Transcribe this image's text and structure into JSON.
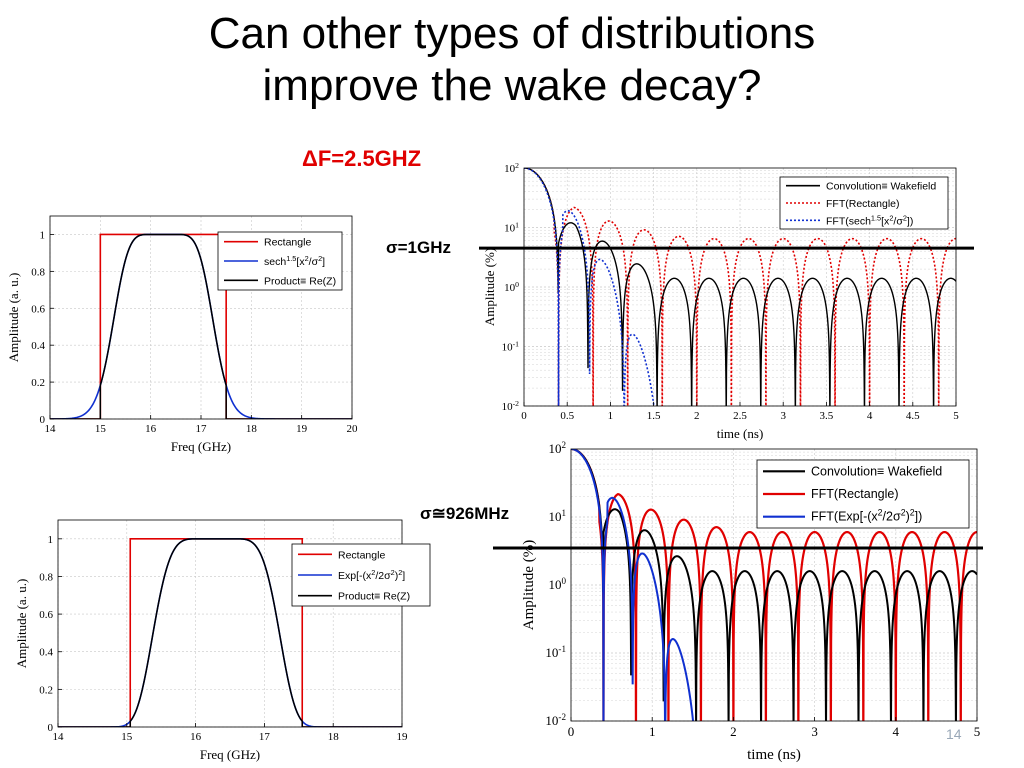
{
  "slide": {
    "title_line1": "Can other types of distributions",
    "title_line2": "improve the wake decay?",
    "delta_f_label": "F=2.5GHZ",
    "delta_symbol": "Δ",
    "sigma1_label": "σ=1GHz",
    "sigma2_label": "σ≅926MHz",
    "page_number": "14"
  },
  "colors": {
    "red": "#e00000",
    "blue": "#1030d0",
    "black": "#000000"
  },
  "chart_data": [
    {
      "id": "freq1",
      "type": "line",
      "xlabel": "Freq (GHz)",
      "ylabel": "Amplitude (a. u.)",
      "xlim": [
        14,
        20
      ],
      "ylim": [
        0,
        1.1
      ],
      "xticks": [
        "14",
        "15",
        "16",
        "17",
        "18",
        "19",
        "20"
      ],
      "yticks": [
        "0",
        "0.2",
        "0.4",
        "0.6",
        "0.8",
        "1"
      ],
      "rect_range": [
        15,
        17.5
      ],
      "dist": {
        "type": "sech",
        "center": 16.25,
        "sigma": 1.0,
        "flat_halfwidth": 0.25,
        "power": 1.5
      },
      "series": [
        {
          "name": "Rectangle",
          "color": "#e00000",
          "style": "solid"
        },
        {
          "name": "sech",
          "sup1": "1.5",
          "mid": "[x",
          "sup2": "2",
          "end": "/σ",
          "sup3": "2",
          "close": "]",
          "color": "#1030d0",
          "style": "solid"
        },
        {
          "name": "Product≡ Re(Z)",
          "color": "#000000",
          "style": "solid"
        }
      ]
    },
    {
      "id": "wake1",
      "type": "line",
      "log_y": true,
      "xlabel": "time (ns)",
      "ylabel": "Amplitude (%)",
      "xlim": [
        0,
        5
      ],
      "ylim": [
        0.01,
        100
      ],
      "xticks": [
        "0",
        "0.5",
        "1",
        "1.5",
        "2",
        "2.5",
        "3",
        "3.5",
        "4",
        "4.5",
        "5"
      ],
      "ytick_base": "10",
      "ytick_exps": [
        "-2",
        "-1",
        "0",
        "1",
        "2"
      ],
      "threshold": 4.5,
      "series": [
        {
          "name": "Convolution≡ Wakefield",
          "color": "#000000",
          "style": "solid",
          "envelope": {
            "floor": 1.4,
            "peak": 12
          }
        },
        {
          "name": "FFT(Rectangle)",
          "color": "#e00000",
          "style": "dotted",
          "envelope": {
            "floor": 6.5,
            "peak": 22
          }
        },
        {
          "name": "FFT(sech",
          "sup1": "1.5",
          "mid": "[x",
          "sup2": "2",
          "end": "/σ",
          "sup3": "2",
          "close": "])",
          "color": "#1030d0",
          "style": "dotted"
        }
      ]
    },
    {
      "id": "freq2",
      "type": "line",
      "xlabel": "Freq (GHz)",
      "ylabel": "Amplitude (a. u.)",
      "xlim": [
        14,
        19
      ],
      "ylim": [
        0,
        1.1
      ],
      "xticks": [
        "14",
        "15",
        "16",
        "17",
        "18",
        "19"
      ],
      "yticks": [
        "0",
        "0.2",
        "0.4",
        "0.6",
        "0.8",
        "1"
      ],
      "rect_range": [
        15.05,
        17.55
      ],
      "dist": {
        "type": "gauss",
        "center": 16.3,
        "sigma": 0.926,
        "flat_halfwidth": 0.25
      },
      "series": [
        {
          "name": "Rectangle",
          "color": "#e00000",
          "style": "solid"
        },
        {
          "name": "Exp[-(x",
          "sup1": "2",
          "mid": "/2σ",
          "sup2": "2",
          "end": ")",
          "sup3": "2",
          "close": "]",
          "color": "#1030d0",
          "style": "solid"
        },
        {
          "name": "Product≡ Re(Z)",
          "color": "#000000",
          "style": "solid"
        }
      ]
    },
    {
      "id": "wake2",
      "type": "line",
      "log_y": true,
      "xlabel": "time (ns)",
      "ylabel": "Amplitude (%)",
      "xlim": [
        0,
        5
      ],
      "ylim": [
        0.01,
        100
      ],
      "xticks": [
        "0",
        "1",
        "2",
        "3",
        "4",
        "5"
      ],
      "ytick_base": "10",
      "ytick_exps": [
        "-2",
        "-1",
        "0",
        "1",
        "2"
      ],
      "threshold": 3.5,
      "series": [
        {
          "name": "Convolution≡ Wakefield",
          "color": "#000000",
          "style": "solid",
          "envelope": {
            "floor": 1.6,
            "peak": 13
          }
        },
        {
          "name": "FFT(Rectangle)",
          "color": "#e00000",
          "style": "solid",
          "envelope": {
            "floor": 6.0,
            "peak": 22
          }
        },
        {
          "name": "FFT(Exp[-(x",
          "sup1": "2",
          "mid": "/2σ",
          "sup2": "2",
          "end": ")",
          "sup3": "2",
          "close": "])",
          "color": "#1030d0",
          "style": "solid"
        }
      ]
    }
  ]
}
